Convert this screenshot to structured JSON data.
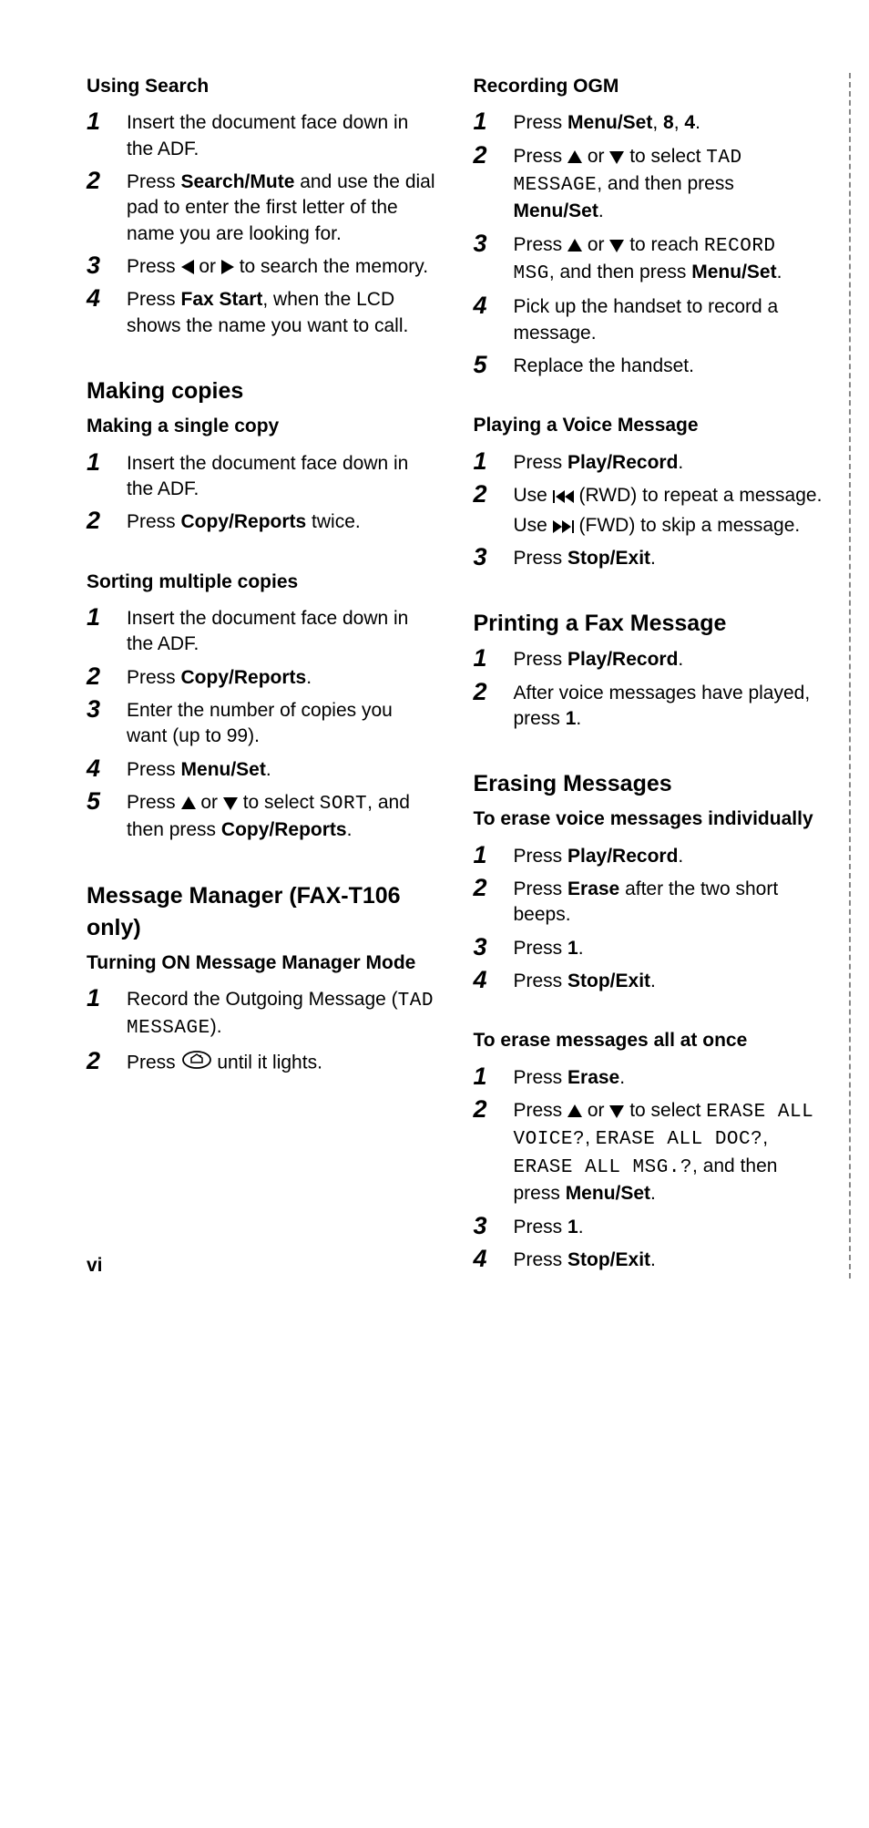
{
  "page_number": "vi",
  "left_column": {
    "sections": [
      {
        "subheading": "Using Search",
        "steps": [
          {
            "n": "1",
            "parts": [
              {
                "t": "text",
                "v": "Insert the document face down in the ADF."
              }
            ]
          },
          {
            "n": "2",
            "parts": [
              {
                "t": "text",
                "v": "Press "
              },
              {
                "t": "bold",
                "v": "Search/Mute"
              },
              {
                "t": "text",
                "v": " and use the dial pad to enter the first letter of the name you are looking for."
              }
            ]
          },
          {
            "n": "3",
            "parts": [
              {
                "t": "text",
                "v": "Press "
              },
              {
                "t": "icon",
                "v": "tri-left"
              },
              {
                "t": "text",
                "v": " or "
              },
              {
                "t": "icon",
                "v": "tri-right"
              },
              {
                "t": "text",
                "v": " to search the memory."
              }
            ]
          },
          {
            "n": "4",
            "parts": [
              {
                "t": "text",
                "v": "Press "
              },
              {
                "t": "bold",
                "v": "Fax Start"
              },
              {
                "t": "text",
                "v": ", when the LCD shows the name you want to call."
              }
            ]
          }
        ]
      },
      {
        "heading": "Making copies",
        "subheading": "Making a single copy",
        "steps": [
          {
            "n": "1",
            "parts": [
              {
                "t": "text",
                "v": "Insert the document face down in the ADF."
              }
            ]
          },
          {
            "n": "2",
            "parts": [
              {
                "t": "text",
                "v": "Press "
              },
              {
                "t": "bold",
                "v": "Copy/Reports"
              },
              {
                "t": "text",
                "v": " twice."
              }
            ]
          }
        ]
      },
      {
        "subheading": "Sorting multiple copies",
        "steps": [
          {
            "n": "1",
            "parts": [
              {
                "t": "text",
                "v": "Insert the document face down in the ADF."
              }
            ]
          },
          {
            "n": "2",
            "parts": [
              {
                "t": "text",
                "v": "Press "
              },
              {
                "t": "bold",
                "v": "Copy/Reports"
              },
              {
                "t": "text",
                "v": "."
              }
            ]
          },
          {
            "n": "3",
            "parts": [
              {
                "t": "text",
                "v": "Enter the number of copies you want (up to 99)."
              }
            ]
          },
          {
            "n": "4",
            "parts": [
              {
                "t": "text",
                "v": "Press "
              },
              {
                "t": "bold",
                "v": "Menu/Set"
              },
              {
                "t": "text",
                "v": "."
              }
            ]
          },
          {
            "n": "5",
            "parts": [
              {
                "t": "text",
                "v": "Press "
              },
              {
                "t": "icon",
                "v": "tri-up"
              },
              {
                "t": "text",
                "v": " or "
              },
              {
                "t": "icon",
                "v": "tri-down"
              },
              {
                "t": "text",
                "v": " to select "
              },
              {
                "t": "mono",
                "v": "SORT"
              },
              {
                "t": "text",
                "v": ", and then press "
              },
              {
                "t": "bold",
                "v": "Copy/Reports"
              },
              {
                "t": "text",
                "v": "."
              }
            ]
          }
        ]
      },
      {
        "heading": "Message Manager (FAX-T106 only)",
        "subheading": "Turning ON Message Manager Mode",
        "steps": [
          {
            "n": "1",
            "parts": [
              {
                "t": "text",
                "v": "Record the Outgoing Message ("
              },
              {
                "t": "mono",
                "v": "TAD MESSAGE"
              },
              {
                "t": "text",
                "v": ")."
              }
            ]
          },
          {
            "n": "2",
            "parts": [
              {
                "t": "text",
                "v": "Press "
              },
              {
                "t": "icon",
                "v": "home-btn"
              },
              {
                "t": "text",
                "v": " until it lights."
              }
            ]
          }
        ]
      }
    ]
  },
  "right_column": {
    "sections": [
      {
        "subheading": "Recording OGM",
        "steps": [
          {
            "n": "1",
            "parts": [
              {
                "t": "text",
                "v": "Press "
              },
              {
                "t": "bold",
                "v": "Menu/Set"
              },
              {
                "t": "text",
                "v": ", "
              },
              {
                "t": "bold",
                "v": "8"
              },
              {
                "t": "text",
                "v": ", "
              },
              {
                "t": "bold",
                "v": "4"
              },
              {
                "t": "text",
                "v": "."
              }
            ]
          },
          {
            "n": "2",
            "parts": [
              {
                "t": "text",
                "v": "Press "
              },
              {
                "t": "icon",
                "v": "tri-up"
              },
              {
                "t": "text",
                "v": " or "
              },
              {
                "t": "icon",
                "v": "tri-down"
              },
              {
                "t": "text",
                "v": " to select "
              },
              {
                "t": "mono",
                "v": "TAD MESSAGE"
              },
              {
                "t": "text",
                "v": ", and then press "
              },
              {
                "t": "bold",
                "v": "Menu/Set"
              },
              {
                "t": "text",
                "v": "."
              }
            ]
          },
          {
            "n": "3",
            "parts": [
              {
                "t": "text",
                "v": "Press "
              },
              {
                "t": "icon",
                "v": "tri-up"
              },
              {
                "t": "text",
                "v": " or "
              },
              {
                "t": "icon",
                "v": "tri-down"
              },
              {
                "t": "text",
                "v": " to reach "
              },
              {
                "t": "mono",
                "v": "RECORD MSG"
              },
              {
                "t": "text",
                "v": ", and then press "
              },
              {
                "t": "bold",
                "v": "Menu/Set"
              },
              {
                "t": "text",
                "v": "."
              }
            ]
          },
          {
            "n": "4",
            "parts": [
              {
                "t": "text",
                "v": "Pick up the handset to record a message."
              }
            ]
          },
          {
            "n": "5",
            "parts": [
              {
                "t": "text",
                "v": "Replace the handset."
              }
            ]
          }
        ]
      },
      {
        "subheading": "Playing a Voice Message",
        "steps": [
          {
            "n": "1",
            "parts": [
              {
                "t": "text",
                "v": "Press "
              },
              {
                "t": "bold",
                "v": "Play/Record"
              },
              {
                "t": "text",
                "v": "."
              }
            ]
          },
          {
            "n": "2",
            "parts": [
              {
                "t": "text",
                "v": "Use "
              },
              {
                "t": "icon",
                "v": "rwd"
              },
              {
                "t": "text",
                "v": " (RWD) to repeat a message."
              }
            ],
            "sub": [
              {
                "t": "text",
                "v": "Use "
              },
              {
                "t": "icon",
                "v": "fwd"
              },
              {
                "t": "text",
                "v": " (FWD) to skip a message."
              }
            ]
          },
          {
            "n": "3",
            "parts": [
              {
                "t": "text",
                "v": "Press "
              },
              {
                "t": "bold",
                "v": "Stop/Exit"
              },
              {
                "t": "text",
                "v": "."
              }
            ]
          }
        ]
      },
      {
        "heading": "Printing a Fax Message",
        "steps": [
          {
            "n": "1",
            "parts": [
              {
                "t": "text",
                "v": "Press "
              },
              {
                "t": "bold",
                "v": "Play/Record"
              },
              {
                "t": "text",
                "v": "."
              }
            ]
          },
          {
            "n": "2",
            "parts": [
              {
                "t": "text",
                "v": "After voice messages have played, press "
              },
              {
                "t": "bold",
                "v": "1"
              },
              {
                "t": "text",
                "v": "."
              }
            ]
          }
        ]
      },
      {
        "heading": "Erasing Messages",
        "subheading": "To erase voice messages individually",
        "steps": [
          {
            "n": "1",
            "parts": [
              {
                "t": "text",
                "v": "Press "
              },
              {
                "t": "bold",
                "v": "Play/Record"
              },
              {
                "t": "text",
                "v": "."
              }
            ]
          },
          {
            "n": "2",
            "parts": [
              {
                "t": "text",
                "v": "Press "
              },
              {
                "t": "bold",
                "v": "Erase"
              },
              {
                "t": "text",
                "v": " after the two short beeps."
              }
            ]
          },
          {
            "n": "3",
            "parts": [
              {
                "t": "text",
                "v": "Press "
              },
              {
                "t": "bold",
                "v": "1"
              },
              {
                "t": "text",
                "v": "."
              }
            ]
          },
          {
            "n": "4",
            "parts": [
              {
                "t": "text",
                "v": "Press "
              },
              {
                "t": "bold",
                "v": "Stop/Exit"
              },
              {
                "t": "text",
                "v": "."
              }
            ]
          }
        ]
      },
      {
        "subheading": "To erase messages all at once",
        "steps": [
          {
            "n": "1",
            "parts": [
              {
                "t": "text",
                "v": "Press "
              },
              {
                "t": "bold",
                "v": "Erase"
              },
              {
                "t": "text",
                "v": "."
              }
            ]
          },
          {
            "n": "2",
            "parts": [
              {
                "t": "text",
                "v": "Press "
              },
              {
                "t": "icon",
                "v": "tri-up"
              },
              {
                "t": "text",
                "v": " or "
              },
              {
                "t": "icon",
                "v": "tri-down"
              },
              {
                "t": "text",
                "v": " to select "
              },
              {
                "t": "mono",
                "v": "ERASE ALL VOICE?"
              },
              {
                "t": "text",
                "v": ", "
              },
              {
                "t": "mono",
                "v": "ERASE ALL DOC?"
              },
              {
                "t": "text",
                "v": ", "
              },
              {
                "t": "mono",
                "v": "ERASE ALL MSG.?"
              },
              {
                "t": "text",
                "v": ", and then press "
              },
              {
                "t": "bold",
                "v": "Menu/Set"
              },
              {
                "t": "text",
                "v": "."
              }
            ]
          },
          {
            "n": "3",
            "parts": [
              {
                "t": "text",
                "v": "Press "
              },
              {
                "t": "bold",
                "v": "1"
              },
              {
                "t": "text",
                "v": "."
              }
            ]
          },
          {
            "n": "4",
            "parts": [
              {
                "t": "text",
                "v": "Press "
              },
              {
                "t": "bold",
                "v": "Stop/Exit"
              },
              {
                "t": "text",
                "v": "."
              }
            ]
          }
        ]
      }
    ]
  }
}
